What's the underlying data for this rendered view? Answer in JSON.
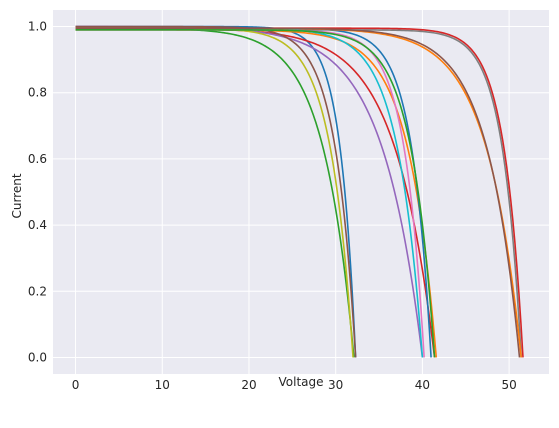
{
  "chart_data": {
    "type": "line",
    "title": "",
    "xlabel": "Voltage",
    "ylabel": "Current",
    "xlim": [
      -2.6,
      54.6
    ],
    "ylim": [
      -0.05,
      1.05
    ],
    "xticks": [
      0,
      10,
      20,
      30,
      40,
      50
    ],
    "yticks": [
      0.0,
      0.2,
      0.4,
      0.6,
      0.8,
      1.0
    ],
    "xtick_labels": [
      "0",
      "10",
      "20",
      "30",
      "40",
      "50"
    ],
    "ytick_labels": [
      "0.0",
      "0.2",
      "0.4",
      "0.6",
      "0.8",
      "1.0"
    ],
    "grid": true,
    "background": "#eaeaf2",
    "series": [
      {
        "color": "#1f77b4",
        "voc": 32.3,
        "isc": 1.0,
        "vk": 28.5,
        "ik": 0.88
      },
      {
        "color": "#ff7f0e",
        "voc": 41.6,
        "isc": 0.99,
        "vk": 34.5,
        "ik": 0.88
      },
      {
        "color": "#2ca02c",
        "voc": 32.1,
        "isc": 0.995,
        "vk": 26.0,
        "ik": 0.82
      },
      {
        "color": "#d62728",
        "voc": 41.4,
        "isc": 0.995,
        "vk": 33.0,
        "ik": 0.84
      },
      {
        "color": "#9467bd",
        "voc": 40.0,
        "isc": 1.0,
        "vk": 33.0,
        "ik": 0.78
      },
      {
        "color": "#8c564b",
        "voc": 32.3,
        "isc": 1.0,
        "vk": 28.0,
        "ik": 0.84
      },
      {
        "color": "#e377c2",
        "voc": 40.2,
        "isc": 0.99,
        "vk": 35.0,
        "ik": 0.89
      },
      {
        "color": "#7f7f7f",
        "voc": 51.4,
        "isc": 0.99,
        "vk": 46.0,
        "ik": 0.91
      },
      {
        "color": "#bcbd22",
        "voc": 32.0,
        "isc": 0.995,
        "vk": 27.0,
        "ik": 0.85
      },
      {
        "color": "#17becf",
        "voc": 40.0,
        "isc": 0.995,
        "vk": 34.5,
        "ik": 0.85
      },
      {
        "color": "#1f77b4",
        "voc": 41.0,
        "isc": 0.995,
        "vk": 36.0,
        "ik": 0.89
      },
      {
        "color": "#ff7f0e",
        "voc": 51.4,
        "isc": 0.995,
        "vk": 44.0,
        "ik": 0.84
      },
      {
        "color": "#2ca02c",
        "voc": 41.4,
        "isc": 0.99,
        "vk": 35.5,
        "ik": 0.88
      },
      {
        "color": "#d62728",
        "voc": 51.6,
        "isc": 0.995,
        "vk": 46.5,
        "ik": 0.9
      },
      {
        "color": "#8c564b",
        "voc": 51.2,
        "isc": 0.995,
        "vk": 44.5,
        "ik": 0.83
      }
    ]
  }
}
